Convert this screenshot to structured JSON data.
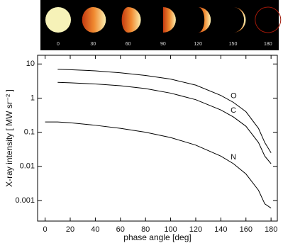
{
  "chart_data": {
    "type": "line",
    "phase_labels": [
      "0",
      "30",
      "60",
      "90",
      "120",
      "150",
      "180"
    ],
    "x_label": "phase angle  [deg]",
    "y_label": "X-ray intensity  [ MW sr⁻² ]",
    "x": [
      0,
      10,
      20,
      40,
      60,
      80,
      100,
      120,
      140,
      150,
      160,
      170,
      175,
      180
    ],
    "series": [
      {
        "name": "O",
        "color": "#000000",
        "values": [
          null,
          7,
          6.8,
          6.3,
          5.5,
          4.6,
          3.6,
          2.4,
          1.2,
          0.75,
          0.4,
          0.13,
          0.05,
          0.025
        ]
      },
      {
        "name": "C",
        "color": "#000000",
        "values": [
          null,
          2.9,
          2.8,
          2.6,
          2.3,
          1.9,
          1.4,
          0.9,
          0.45,
          0.28,
          0.15,
          0.05,
          0.02,
          0.012
        ]
      },
      {
        "name": "N",
        "color": "#000000",
        "values": [
          0.2,
          0.2,
          0.19,
          0.16,
          0.13,
          0.1,
          0.07,
          0.042,
          0.02,
          0.012,
          0.006,
          0.002,
          0.0008,
          0.0006
        ]
      }
    ],
    "xlim": [
      -6,
      185
    ],
    "ylim": [
      0.00025,
      18
    ],
    "log_y": true,
    "xticks": [
      0,
      20,
      40,
      60,
      80,
      100,
      120,
      140,
      160,
      180
    ],
    "yticks": [
      0.001,
      0.01,
      0.1,
      1,
      10
    ]
  }
}
